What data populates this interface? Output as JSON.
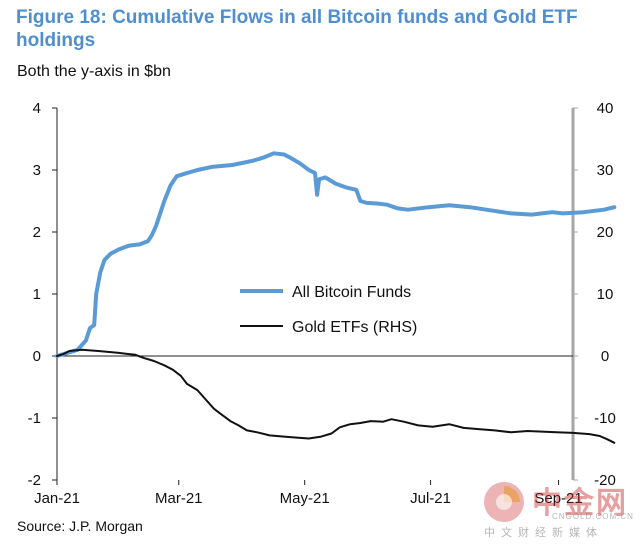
{
  "title": "Figure 18: Cumulative Flows in all Bitcoin funds and Gold ETF holdings",
  "subtitle": "Both the y-axis in $bn",
  "source": "Source: J.P. Morgan",
  "watermark": {
    "name": "中金网",
    "site": "CNGOLD.COM.CN",
    "tagline": "中文财经新媒体"
  },
  "colors": {
    "title": "#4f8fcf",
    "bitcoin_series": "#5b9bd5",
    "gold_series": "#111111",
    "right_axis": "#a6a6a6"
  },
  "chart_data": {
    "type": "line",
    "x_tick_labels": [
      "Jan-21",
      "Mar-21",
      "May-21",
      "Jul-21",
      "Sep-21"
    ],
    "x_tick_days": [
      0,
      59,
      120,
      181,
      243
    ],
    "x_range_days": [
      0,
      250
    ],
    "y_left": {
      "min": -2,
      "max": 4,
      "ticks": [
        -2,
        -1,
        0,
        1,
        2,
        3,
        4
      ],
      "unit": "$bn"
    },
    "y_right": {
      "min": -20,
      "max": 40,
      "ticks": [
        -20,
        -10,
        0,
        10,
        20,
        30,
        40
      ],
      "unit": "$bn"
    },
    "legend": {
      "position": "center",
      "entries": [
        "All Bitcoin Funds",
        "Gold ETFs (RHS)"
      ]
    },
    "series": [
      {
        "name": "All Bitcoin Funds",
        "axis": "left",
        "color": "#5b9bd5",
        "points": [
          [
            0,
            0
          ],
          [
            5,
            0.05
          ],
          [
            10,
            0.1
          ],
          [
            14,
            0.25
          ],
          [
            16,
            0.45
          ],
          [
            18,
            0.5
          ],
          [
            19,
            1.0
          ],
          [
            21,
            1.35
          ],
          [
            23,
            1.55
          ],
          [
            26,
            1.65
          ],
          [
            30,
            1.72
          ],
          [
            35,
            1.78
          ],
          [
            40,
            1.8
          ],
          [
            44,
            1.85
          ],
          [
            46,
            1.95
          ],
          [
            48,
            2.1
          ],
          [
            50,
            2.3
          ],
          [
            52,
            2.5
          ],
          [
            55,
            2.75
          ],
          [
            58,
            2.9
          ],
          [
            63,
            2.95
          ],
          [
            68,
            3.0
          ],
          [
            75,
            3.05
          ],
          [
            85,
            3.08
          ],
          [
            95,
            3.15
          ],
          [
            100,
            3.2
          ],
          [
            105,
            3.27
          ],
          [
            110,
            3.25
          ],
          [
            113,
            3.2
          ],
          [
            118,
            3.1
          ],
          [
            122,
            3.0
          ],
          [
            125,
            2.95
          ],
          [
            126,
            2.6
          ],
          [
            127,
            2.85
          ],
          [
            130,
            2.88
          ],
          [
            135,
            2.78
          ],
          [
            140,
            2.72
          ],
          [
            145,
            2.68
          ],
          [
            147,
            2.5
          ],
          [
            150,
            2.47
          ],
          [
            155,
            2.46
          ],
          [
            160,
            2.44
          ],
          [
            165,
            2.38
          ],
          [
            170,
            2.36
          ],
          [
            180,
            2.4
          ],
          [
            190,
            2.43
          ],
          [
            200,
            2.4
          ],
          [
            210,
            2.35
          ],
          [
            220,
            2.3
          ],
          [
            230,
            2.28
          ],
          [
            235,
            2.3
          ],
          [
            240,
            2.32
          ],
          [
            245,
            2.3
          ],
          [
            255,
            2.32
          ],
          [
            265,
            2.36
          ],
          [
            270,
            2.4
          ]
        ]
      },
      {
        "name": "Gold ETFs (RHS)",
        "axis": "right",
        "color": "#111111",
        "points": [
          [
            0,
            0
          ],
          [
            3,
            0.3
          ],
          [
            6,
            0.8
          ],
          [
            12,
            1.0
          ],
          [
            20,
            0.8
          ],
          [
            30,
            0.5
          ],
          [
            38,
            0.2
          ],
          [
            42,
            -0.3
          ],
          [
            47,
            -0.8
          ],
          [
            52,
            -1.5
          ],
          [
            56,
            -2.2
          ],
          [
            60,
            -3.2
          ],
          [
            63,
            -4.5
          ],
          [
            68,
            -5.5
          ],
          [
            72,
            -7.0
          ],
          [
            76,
            -8.5
          ],
          [
            80,
            -9.5
          ],
          [
            84,
            -10.5
          ],
          [
            88,
            -11.2
          ],
          [
            92,
            -12.0
          ],
          [
            97,
            -12.3
          ],
          [
            103,
            -12.8
          ],
          [
            110,
            -13.0
          ],
          [
            117,
            -13.2
          ],
          [
            122,
            -13.3
          ],
          [
            128,
            -13.0
          ],
          [
            133,
            -12.5
          ],
          [
            137,
            -11.5
          ],
          [
            142,
            -11.0
          ],
          [
            147,
            -10.8
          ],
          [
            152,
            -10.5
          ],
          [
            158,
            -10.6
          ],
          [
            162,
            -10.2
          ],
          [
            168,
            -10.6
          ],
          [
            175,
            -11.2
          ],
          [
            182,
            -11.4
          ],
          [
            190,
            -11.0
          ],
          [
            197,
            -11.6
          ],
          [
            205,
            -11.8
          ],
          [
            212,
            -12.0
          ],
          [
            220,
            -12.3
          ],
          [
            228,
            -12.1
          ],
          [
            235,
            -12.2
          ],
          [
            242,
            -12.3
          ],
          [
            250,
            -12.4
          ],
          [
            258,
            -12.6
          ],
          [
            263,
            -12.9
          ],
          [
            267,
            -13.5
          ],
          [
            270,
            -14.0
          ]
        ]
      }
    ]
  }
}
